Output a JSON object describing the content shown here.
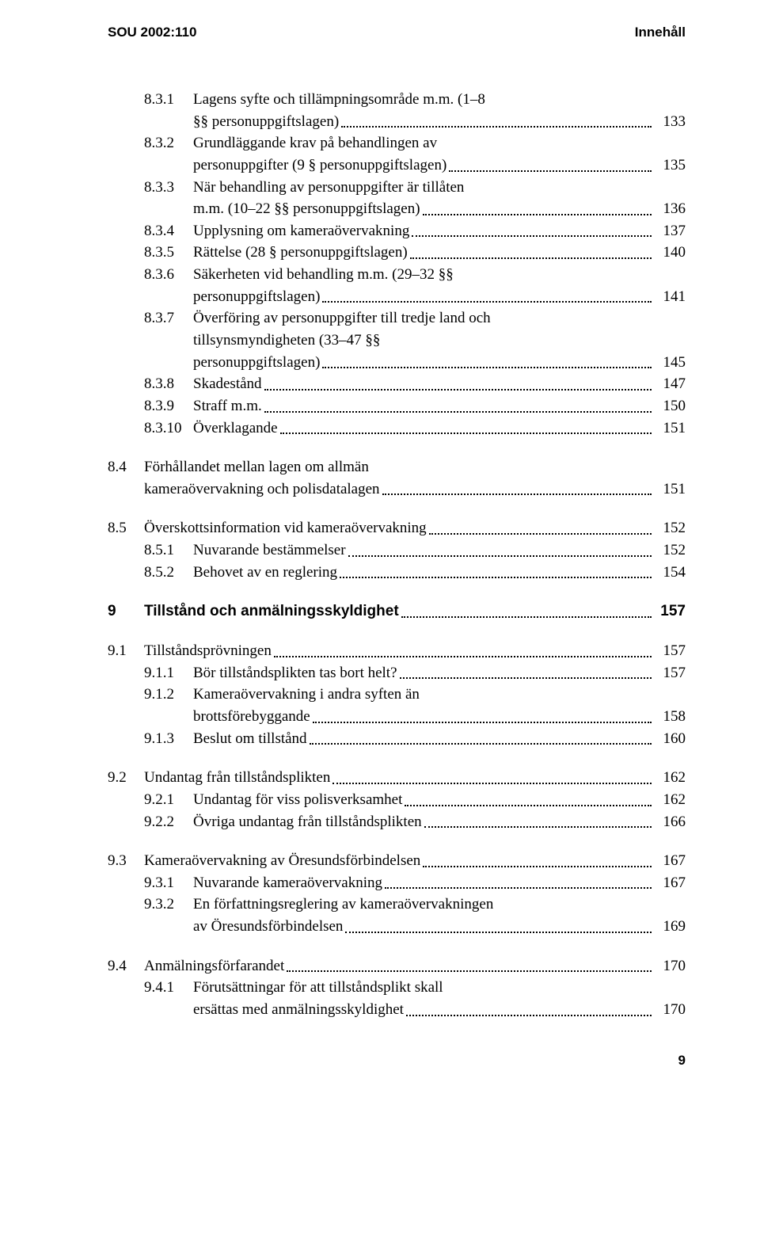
{
  "header": {
    "left": "SOU 2002:110",
    "right": "Innehåll"
  },
  "footer": {
    "page": "9"
  },
  "colors": {
    "text": "#000000",
    "background": "#ffffff",
    "dots": "#000000"
  },
  "typography": {
    "body_font": "Georgia / Times New Roman serif",
    "body_size_pt": 14,
    "header_font": "Arial sans-serif",
    "header_size_pt": 12,
    "chapter_weight": "bold"
  },
  "toc": [
    {
      "type": "sub",
      "num": "8.3.1",
      "lines": [
        "Lagens syfte och tillämpningsområde m.m. (1–8",
        "§§ personuppgiftslagen)"
      ],
      "page": "133"
    },
    {
      "type": "sub",
      "num": "8.3.2",
      "lines": [
        "Grundläggande krav på behandlingen av",
        "personuppgifter (9 § personuppgiftslagen)"
      ],
      "page": "135"
    },
    {
      "type": "sub",
      "num": "8.3.3",
      "lines": [
        "När behandling av personuppgifter är tillåten",
        "m.m. (10–22 §§ personuppgiftslagen)"
      ],
      "page": "136"
    },
    {
      "type": "sub",
      "num": "8.3.4",
      "lines": [
        "Upplysning om kameraövervakning"
      ],
      "page": "137"
    },
    {
      "type": "sub",
      "num": "8.3.5",
      "lines": [
        "Rättelse (28 § personuppgiftslagen)"
      ],
      "page": "140"
    },
    {
      "type": "sub",
      "num": "8.3.6",
      "lines": [
        "Säkerheten vid behandling m.m. (29–32 §§",
        "personuppgiftslagen)"
      ],
      "page": "141"
    },
    {
      "type": "sub",
      "num": "8.3.7",
      "lines": [
        "Överföring av personuppgifter till tredje land och",
        "tillsynsmyndigheten (33–47 §§",
        "personuppgiftslagen)"
      ],
      "page": "145"
    },
    {
      "type": "sub",
      "num": "8.3.8",
      "lines": [
        "Skadestånd"
      ],
      "page": "147"
    },
    {
      "type": "sub",
      "num": "8.3.9",
      "lines": [
        "Straff m.m."
      ],
      "page": "150"
    },
    {
      "type": "sub",
      "num": "8.3.10",
      "lines": [
        "Överklagande"
      ],
      "page": "151"
    },
    {
      "type": "section",
      "num": "8.4",
      "lines": [
        "Förhållandet mellan lagen om allmän",
        "kameraövervakning och polisdatalagen"
      ],
      "page": "151",
      "spaced": true
    },
    {
      "type": "section",
      "num": "8.5",
      "lines": [
        "Överskottsinformation vid kameraövervakning"
      ],
      "page": "152",
      "spaced": true
    },
    {
      "type": "sub",
      "num": "8.5.1",
      "lines": [
        "Nuvarande bestämmelser"
      ],
      "page": "152"
    },
    {
      "type": "sub",
      "num": "8.5.2",
      "lines": [
        "Behovet av en reglering"
      ],
      "page": "154"
    },
    {
      "type": "chapter",
      "num": "9",
      "lines": [
        "Tillstånd och anmälningsskyldighet"
      ],
      "page": "157",
      "spaced": true
    },
    {
      "type": "section",
      "num": "9.1",
      "lines": [
        "Tillståndsprövningen"
      ],
      "page": "157",
      "spaced": true
    },
    {
      "type": "sub",
      "num": "9.1.1",
      "lines": [
        "Bör tillståndsplikten tas bort helt?"
      ],
      "page": "157"
    },
    {
      "type": "sub",
      "num": "9.1.2",
      "lines": [
        "Kameraövervakning i andra syften än",
        "brottsförebyggande"
      ],
      "page": "158"
    },
    {
      "type": "sub",
      "num": "9.1.3",
      "lines": [
        "Beslut om tillstånd"
      ],
      "page": "160"
    },
    {
      "type": "section",
      "num": "9.2",
      "lines": [
        "Undantag från tillståndsplikten"
      ],
      "page": "162",
      "spaced": true
    },
    {
      "type": "sub",
      "num": "9.2.1",
      "lines": [
        "Undantag för viss polisverksamhet"
      ],
      "page": "162"
    },
    {
      "type": "sub",
      "num": "9.2.2",
      "lines": [
        "Övriga undantag från tillståndsplikten"
      ],
      "page": "166"
    },
    {
      "type": "section",
      "num": "9.3",
      "lines": [
        "Kameraövervakning av Öresundsförbindelsen"
      ],
      "page": "167",
      "spaced": true
    },
    {
      "type": "sub",
      "num": "9.3.1",
      "lines": [
        "Nuvarande kameraövervakning"
      ],
      "page": "167"
    },
    {
      "type": "sub",
      "num": "9.3.2",
      "lines": [
        "En författningsreglering av kameraövervakningen",
        "av Öresundsförbindelsen"
      ],
      "page": "169"
    },
    {
      "type": "section",
      "num": "9.4",
      "lines": [
        "Anmälningsförfarandet"
      ],
      "page": "170",
      "spaced": true
    },
    {
      "type": "sub",
      "num": "9.4.1",
      "lines": [
        "Förutsättningar för att tillståndsplikt skall",
        "ersättas med anmälningsskyldighet"
      ],
      "page": "170"
    }
  ]
}
